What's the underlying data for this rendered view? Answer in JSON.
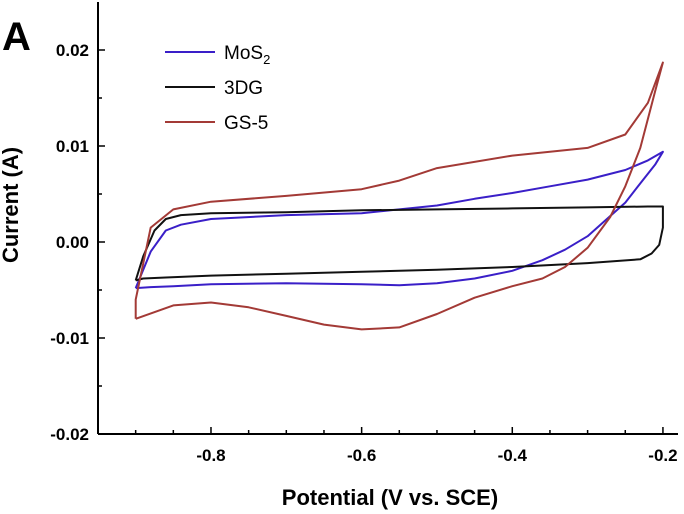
{
  "panel_label": "A",
  "chart_data": {
    "type": "line",
    "xlabel": "Potential (V vs. SCE)",
    "ylabel": "Current (A)",
    "xlim": [
      -0.95,
      -0.18
    ],
    "ylim": [
      -0.02,
      0.025
    ],
    "xticks": [
      -0.8,
      -0.6,
      -0.4,
      -0.2
    ],
    "xtick_labels": [
      "-0.8",
      "-0.6",
      "-0.4",
      "-0.2"
    ],
    "yticks": [
      -0.02,
      -0.01,
      0.0,
      0.01,
      0.02
    ],
    "ytick_labels": [
      "-0.02",
      "-0.01",
      "0.00",
      "0.01",
      "0.02"
    ],
    "grid": false,
    "legend_position": "top-left",
    "series": [
      {
        "name": "MoS",
        "name_subscript": "2",
        "color": "#3a1fc8",
        "x": [
          -0.9,
          -0.88,
          -0.86,
          -0.84,
          -0.8,
          -0.7,
          -0.6,
          -0.5,
          -0.45,
          -0.4,
          -0.35,
          -0.3,
          -0.25,
          -0.22,
          -0.2,
          -0.21,
          -0.23,
          -0.25,
          -0.28,
          -0.3,
          -0.33,
          -0.36,
          -0.4,
          -0.45,
          -0.5,
          -0.55,
          -0.6,
          -0.7,
          -0.8,
          -0.85,
          -0.88,
          -0.9
        ],
        "y": [
          -0.0048,
          -0.001,
          0.0012,
          0.0018,
          0.0024,
          0.0028,
          0.003,
          0.0038,
          0.0045,
          0.0051,
          0.0058,
          0.0065,
          0.0075,
          0.0085,
          0.0094,
          0.0081,
          0.0061,
          0.0041,
          0.002,
          0.0006,
          -0.0008,
          -0.0019,
          -0.003,
          -0.0038,
          -0.0043,
          -0.0045,
          -0.0044,
          -0.0043,
          -0.0044,
          -0.0046,
          -0.0047,
          -0.0048
        ]
      },
      {
        "name": "3DG",
        "name_subscript": "",
        "color": "#111111",
        "x": [
          -0.9,
          -0.89,
          -0.875,
          -0.86,
          -0.84,
          -0.8,
          -0.7,
          -0.6,
          -0.5,
          -0.4,
          -0.3,
          -0.22,
          -0.2,
          -0.2,
          -0.205,
          -0.215,
          -0.23,
          -0.3,
          -0.4,
          -0.5,
          -0.6,
          -0.7,
          -0.8,
          -0.86,
          -0.89,
          -0.9
        ],
        "y": [
          -0.004,
          -0.0015,
          0.0012,
          0.0024,
          0.0028,
          0.003,
          0.0031,
          0.0033,
          0.0034,
          0.0035,
          0.0036,
          0.0037,
          0.0037,
          0.0015,
          -0.0003,
          -0.0012,
          -0.0018,
          -0.0022,
          -0.0026,
          -0.0029,
          -0.0031,
          -0.0033,
          -0.0035,
          -0.0037,
          -0.0038,
          -0.004
        ]
      },
      {
        "name": "GS-5",
        "name_subscript": "",
        "color": "#a33a36",
        "x": [
          -0.9,
          -0.9,
          -0.88,
          -0.85,
          -0.8,
          -0.7,
          -0.6,
          -0.55,
          -0.5,
          -0.4,
          -0.3,
          -0.25,
          -0.22,
          -0.2,
          -0.21,
          -0.23,
          -0.25,
          -0.27,
          -0.3,
          -0.33,
          -0.36,
          -0.4,
          -0.45,
          -0.5,
          -0.55,
          -0.6,
          -0.65,
          -0.7,
          -0.75,
          -0.8,
          -0.85,
          -0.9
        ],
        "y": [
          -0.008,
          -0.006,
          0.0015,
          0.0034,
          0.0042,
          0.0048,
          0.0055,
          0.0064,
          0.0077,
          0.009,
          0.0098,
          0.0112,
          0.0145,
          0.0187,
          0.0158,
          0.0098,
          0.0058,
          0.0026,
          -0.0006,
          -0.0026,
          -0.0038,
          -0.0046,
          -0.0058,
          -0.0075,
          -0.0089,
          -0.0091,
          -0.0086,
          -0.0077,
          -0.0068,
          -0.0063,
          -0.0066,
          -0.008
        ]
      }
    ]
  }
}
